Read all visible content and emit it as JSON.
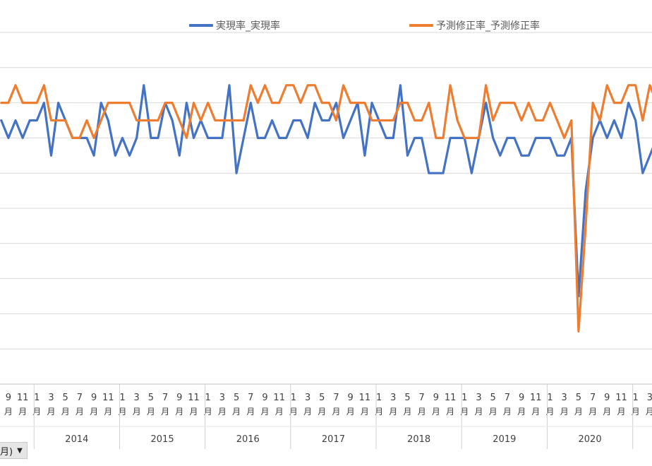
{
  "chart_data": {
    "type": "line",
    "title": "",
    "xlabel": "",
    "ylabel": "",
    "grid": true,
    "legend_position": "top",
    "month_suffix": "月",
    "month_labels": [
      "1",
      "3",
      "5",
      "7",
      "9",
      "11"
    ],
    "years": [
      "2014",
      "2015",
      "2016",
      "2017",
      "2018",
      "2019",
      "2020"
    ],
    "ylim": [
      0,
      10
    ],
    "series": [
      {
        "name": "実現率_実現率",
        "color": "#4472c4",
        "values": [
          7.5,
          7.0,
          7.5,
          7.0,
          7.5,
          7.5,
          8.0,
          6.5,
          8.0,
          7.5,
          7.0,
          7.0,
          7.0,
          6.5,
          8.0,
          7.5,
          6.5,
          7.0,
          6.5,
          7.0,
          8.5,
          7.0,
          7.0,
          8.0,
          7.5,
          6.5,
          8.0,
          7.0,
          7.5,
          7.0,
          7.0,
          7.0,
          8.5,
          6.0,
          7.0,
          8.0,
          7.0,
          7.0,
          7.5,
          7.0,
          7.0,
          7.5,
          7.5,
          7.0,
          8.0,
          7.5,
          7.5,
          8.0,
          7.0,
          7.5,
          8.0,
          6.5,
          8.0,
          7.5,
          7.0,
          7.0,
          8.5,
          6.5,
          7.0,
          7.0,
          6.0,
          6.0,
          6.0,
          7.0,
          7.0,
          7.0,
          6.0,
          7.0,
          8.0,
          7.0,
          6.5,
          7.0,
          7.0,
          6.5,
          6.5,
          7.0,
          7.0,
          7.0,
          6.5,
          6.5,
          7.0,
          2.5,
          5.5,
          7.0,
          7.5,
          7.0,
          7.5,
          7.0,
          8.0,
          7.5,
          6.0,
          6.5,
          7.0
        ]
      },
      {
        "name": "予測修正率_予測修正率",
        "color": "#ed7d31",
        "values": [
          8.0,
          8.0,
          8.5,
          8.0,
          8.0,
          8.0,
          8.5,
          7.5,
          7.5,
          7.5,
          7.0,
          7.0,
          7.5,
          7.0,
          7.5,
          8.0,
          8.0,
          8.0,
          8.0,
          7.5,
          7.5,
          7.5,
          7.5,
          8.0,
          8.0,
          7.5,
          7.0,
          8.0,
          7.5,
          8.0,
          7.5,
          7.5,
          7.5,
          7.5,
          7.5,
          8.5,
          8.0,
          8.5,
          8.0,
          8.0,
          8.5,
          8.5,
          8.0,
          8.5,
          8.5,
          8.0,
          8.0,
          7.5,
          8.5,
          8.0,
          8.0,
          8.0,
          7.5,
          7.5,
          7.5,
          7.5,
          8.0,
          8.0,
          7.5,
          7.5,
          8.0,
          7.0,
          7.0,
          8.5,
          7.5,
          7.0,
          7.0,
          7.0,
          8.5,
          7.5,
          8.0,
          8.0,
          8.0,
          7.5,
          8.0,
          7.5,
          7.5,
          8.0,
          7.5,
          7.0,
          7.5,
          1.5,
          4.5,
          8.0,
          7.5,
          8.5,
          8.0,
          8.0,
          8.5,
          8.5,
          7.5,
          8.5,
          8.0
        ]
      }
    ]
  },
  "filter_button": {
    "label": "月)",
    "arrow": "▼"
  }
}
